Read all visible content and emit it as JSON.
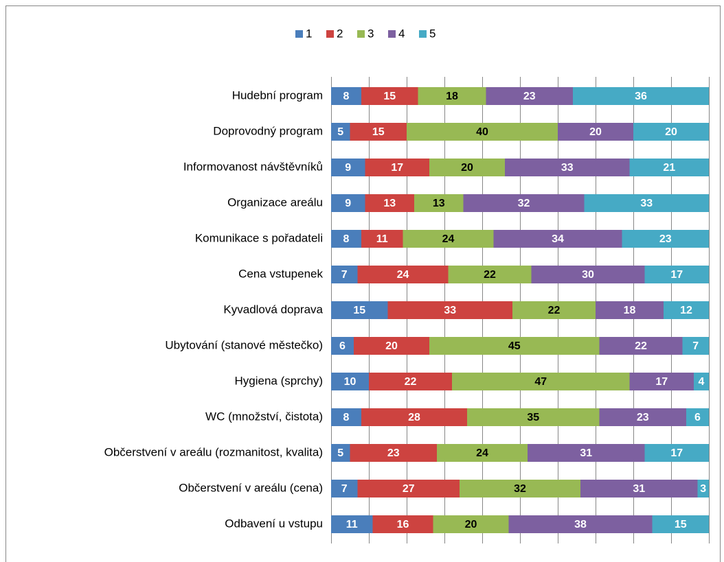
{
  "chart_data": {
    "type": "stacked-bar-horizontal",
    "categories": [
      "Hudební program",
      "Doprovodný program",
      "Informovanost návštěvníků",
      "Organizace areálu",
      "Komunikace s pořadateli",
      "Cena vstupenek",
      "Kyvadlová doprava",
      "Ubytování (stanové městečko)",
      "Hygiena (sprchy)",
      "WC (množství, čistota)",
      "Občerstvení v areálu (rozmanitost, kvalita)",
      "Občerstvení v areálu (cena)",
      "Odbavení u vstupu"
    ],
    "series": [
      {
        "name": "1",
        "color": "#4a7ebb",
        "label_color": "#ffffff",
        "values": [
          8,
          5,
          9,
          9,
          8,
          7,
          15,
          6,
          10,
          8,
          5,
          7,
          11
        ]
      },
      {
        "name": "2",
        "color": "#cd4340",
        "label_color": "#ffffff",
        "values": [
          15,
          15,
          17,
          13,
          11,
          24,
          33,
          20,
          22,
          28,
          23,
          27,
          16
        ]
      },
      {
        "name": "3",
        "color": "#98b954",
        "label_color": "#000000",
        "values": [
          18,
          40,
          20,
          13,
          24,
          22,
          22,
          45,
          47,
          35,
          24,
          32,
          20
        ]
      },
      {
        "name": "4",
        "color": "#7d60a0",
        "label_color": "#ffffff",
        "values": [
          23,
          20,
          33,
          32,
          34,
          30,
          18,
          22,
          17,
          23,
          31,
          31,
          38
        ]
      },
      {
        "name": "5",
        "color": "#46aac5",
        "label_color": "#ffffff",
        "values": [
          36,
          20,
          21,
          33,
          23,
          17,
          12,
          7,
          4,
          6,
          17,
          3,
          15
        ]
      }
    ],
    "xlim": [
      0,
      100
    ],
    "xticks": [
      0,
      10,
      20,
      30,
      40,
      50,
      60,
      70,
      80,
      90,
      100
    ],
    "grid": true,
    "legend": "top"
  }
}
